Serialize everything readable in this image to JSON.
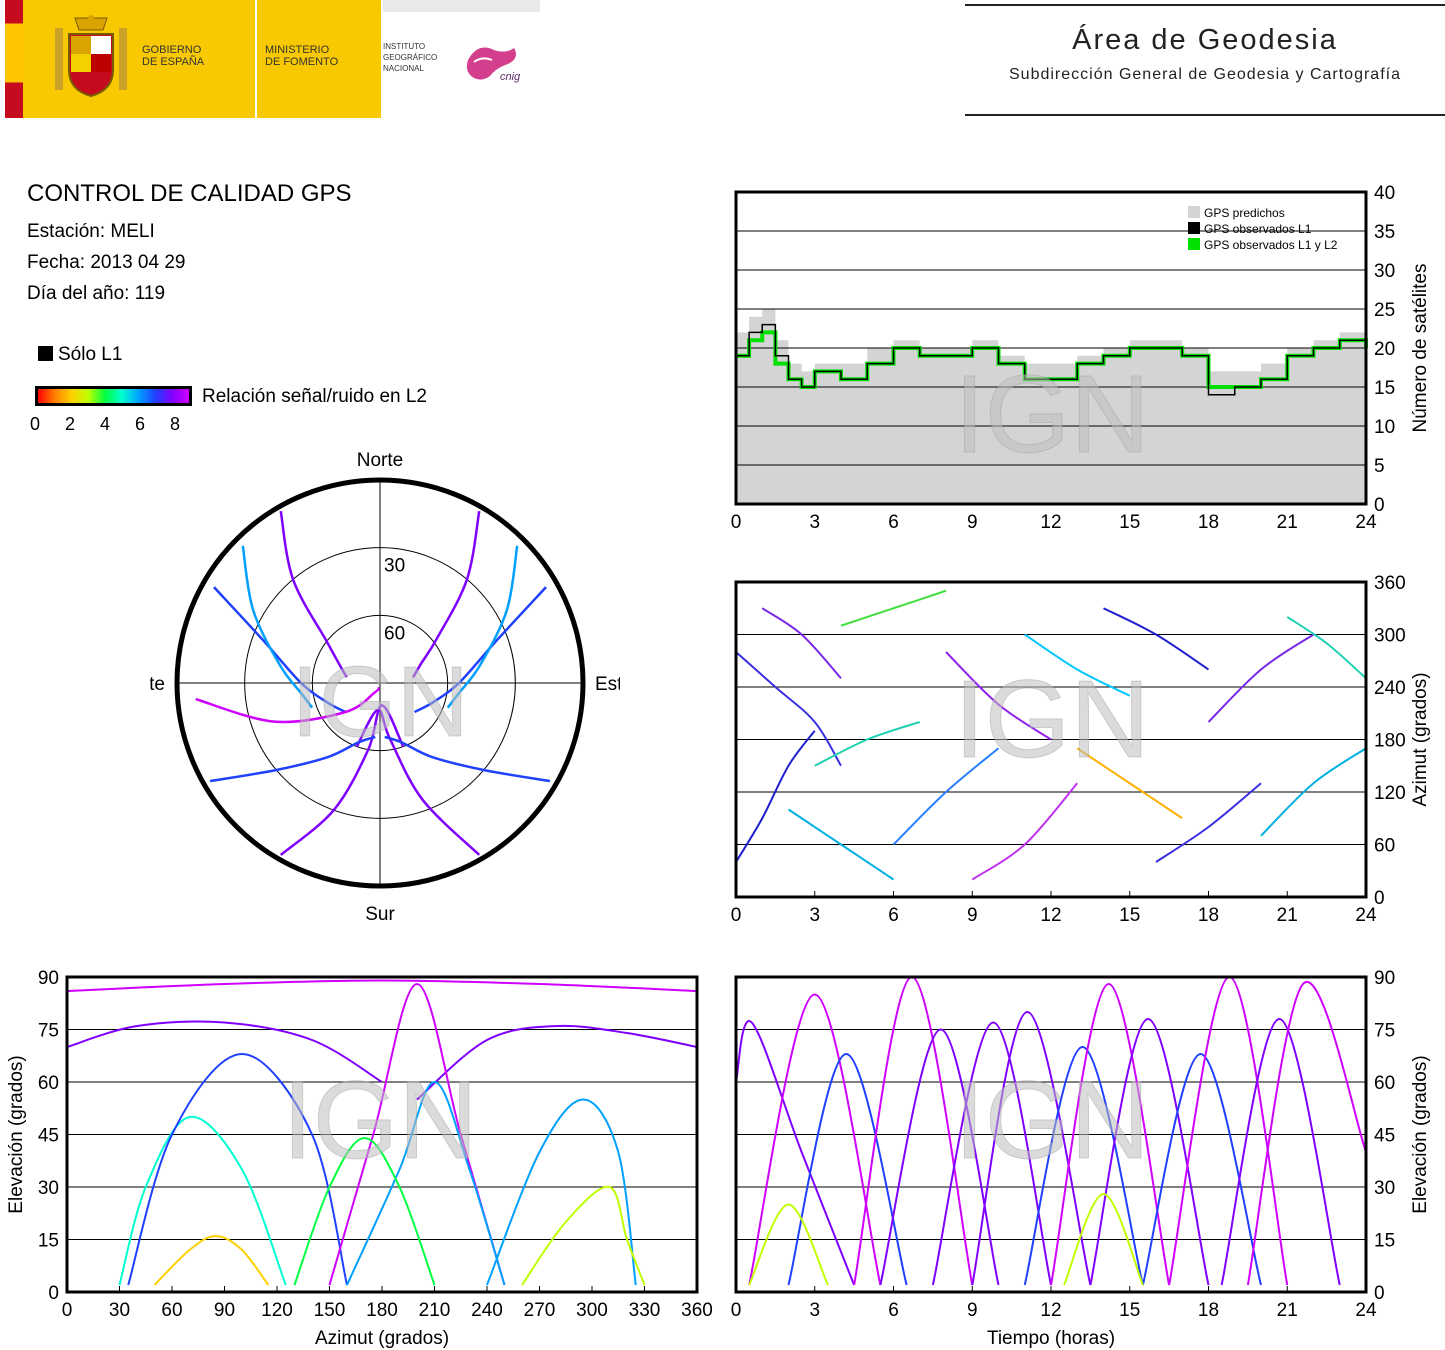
{
  "header": {
    "gobierno": [
      "GOBIERNO",
      "DE ESPAÑA"
    ],
    "ministerio": [
      "MINISTERIO",
      "DE FOMENTO"
    ],
    "instituto": [
      "INSTITUTO",
      "GEOGRÁFICO",
      "NACIONAL"
    ],
    "cnig": "cnig",
    "area_title": "Área de Geodesia",
    "area_subtitle": "Subdirección General de Geodesia y Cartografía"
  },
  "info": {
    "title": "CONTROL DE CALIDAD GPS",
    "station": "Estación: MELI",
    "date": "Fecha: 2013 04 29",
    "doy": "Día del año: 119"
  },
  "legend": {
    "solo_l1": "Sólo L1",
    "snr_label": "Relación señal/ruido en L2",
    "snr_ticks": [
      "0",
      "2",
      "4",
      "6",
      "8"
    ],
    "snr_colors": [
      "#ff0000",
      "#ff8000",
      "#ffd000",
      "#c0ff00",
      "#00ff40",
      "#00ffd0",
      "#00a0ff",
      "#2040ff",
      "#8000ff",
      "#d000ff"
    ]
  },
  "watermark": "IGN",
  "chart_data": [
    {
      "id": "satellites",
      "type": "line",
      "ylabel": "Número de satélites",
      "xlim": [
        0,
        24
      ],
      "ylim": [
        0,
        40
      ],
      "xticks": [
        "0",
        "3",
        "6",
        "9",
        "12",
        "15",
        "18",
        "21",
        "24"
      ],
      "yticks": [
        "0",
        "5",
        "10",
        "15",
        "20",
        "25",
        "30",
        "35",
        "40"
      ],
      "grid": true,
      "legend_position": "top-right",
      "legend": [
        "GPS predichos",
        "GPS observados L1",
        "GPS observados L1 y L2"
      ],
      "series": [
        {
          "name": "GPS predichos",
          "color": "#d4d4d4",
          "x": [
            0,
            0.5,
            1,
            1.5,
            2,
            2.5,
            3,
            4,
            5,
            6,
            7,
            8,
            9,
            10,
            11,
            12,
            13,
            14,
            15,
            16,
            17,
            18,
            19,
            20,
            21,
            22,
            23,
            24
          ],
          "values": [
            22,
            24,
            25,
            21,
            18,
            17,
            18,
            18,
            20,
            21,
            20,
            20,
            21,
            19,
            18,
            18,
            19,
            20,
            21,
            21,
            20,
            17,
            17,
            18,
            20,
            21,
            22,
            21
          ]
        },
        {
          "name": "GPS observados L1",
          "color": "#000000",
          "x": [
            0,
            0.5,
            1,
            1.5,
            2,
            2.5,
            3,
            4,
            5,
            6,
            7,
            8,
            9,
            10,
            11,
            12,
            13,
            14,
            15,
            16,
            17,
            18,
            19,
            20,
            21,
            22,
            23,
            24
          ],
          "values": [
            19,
            22,
            23,
            19,
            16,
            15,
            17,
            16,
            18,
            20,
            19,
            19,
            20,
            18,
            16,
            16,
            18,
            19,
            20,
            20,
            19,
            14,
            15,
            16,
            19,
            20,
            21,
            20
          ]
        },
        {
          "name": "GPS observados L1 y L2",
          "color": "#00e000",
          "x": [
            0,
            0.5,
            1,
            1.5,
            2,
            2.5,
            3,
            4,
            5,
            6,
            7,
            8,
            9,
            10,
            11,
            12,
            13,
            14,
            15,
            16,
            17,
            18,
            19,
            20,
            21,
            22,
            23,
            24
          ],
          "values": [
            19,
            21,
            22,
            18,
            16,
            15,
            17,
            16,
            18,
            20,
            19,
            19,
            20,
            18,
            16,
            16,
            18,
            19,
            20,
            20,
            19,
            15,
            15,
            16,
            19,
            20,
            21,
            20
          ]
        }
      ]
    },
    {
      "id": "skyplot",
      "type": "scatter",
      "directions": {
        "north": "Norte",
        "south": "Sur",
        "east": "Este",
        "west": "Oeste"
      },
      "rings": [
        "30",
        "60"
      ],
      "tracks": [
        {
          "az": [
            330,
            320,
            308,
            295,
            280
          ],
          "el": [
            2,
            30,
            60,
            70,
            75
          ]
        },
        {
          "az": [
            30,
            40,
            52,
            65,
            80
          ],
          "el": [
            2,
            30,
            58,
            70,
            75
          ]
        },
        {
          "az": [
            300,
            290,
            270,
            250,
            230
          ],
          "el": [
            5,
            35,
            55,
            65,
            70
          ]
        },
        {
          "az": [
            60,
            70,
            90,
            110,
            130
          ],
          "el": [
            5,
            35,
            55,
            65,
            70
          ]
        },
        {
          "az": [
            210,
            200,
            190,
            175,
            160
          ],
          "el": [
            2,
            30,
            60,
            80,
            60
          ]
        },
        {
          "az": [
            150,
            160,
            170,
            185,
            200
          ],
          "el": [
            2,
            35,
            65,
            78,
            60
          ]
        },
        {
          "az": [
            240,
            230,
            215,
            200,
            185
          ],
          "el": [
            3,
            30,
            50,
            62,
            66
          ]
        },
        {
          "az": [
            120,
            130,
            145,
            160,
            175
          ],
          "el": [
            3,
            30,
            50,
            62,
            66
          ]
        },
        {
          "az": [
            315,
            300,
            280,
            262,
            250
          ],
          "el": [
            4,
            25,
            45,
            55,
            58
          ]
        },
        {
          "az": [
            45,
            60,
            80,
            98,
            110
          ],
          "el": [
            4,
            25,
            45,
            55,
            58
          ]
        },
        {
          "az": [
            265,
            250,
            230,
            210,
            190
          ],
          "el": [
            8,
            40,
            70,
            85,
            88
          ]
        }
      ]
    },
    {
      "id": "azimut_time",
      "type": "scatter",
      "ylabel": "Azimut (grados)",
      "xlim": [
        0,
        24
      ],
      "ylim": [
        0,
        360
      ],
      "xticks": [
        "0",
        "3",
        "6",
        "9",
        "12",
        "15",
        "18",
        "21",
        "24"
      ],
      "yticks": [
        "0",
        "60",
        "120",
        "180",
        "240",
        "300",
        "360"
      ],
      "grid": true,
      "tracks": [
        {
          "t": [
            0,
            1,
            2,
            3
          ],
          "az": [
            40,
            90,
            150,
            190
          ]
        },
        {
          "t": [
            0,
            1.5,
            3,
            4
          ],
          "az": [
            280,
            240,
            200,
            150
          ]
        },
        {
          "t": [
            1,
            2.5,
            4
          ],
          "az": [
            330,
            300,
            250
          ]
        },
        {
          "t": [
            2,
            4,
            6
          ],
          "az": [
            100,
            60,
            20
          ]
        },
        {
          "t": [
            3,
            5,
            7
          ],
          "az": [
            150,
            180,
            200
          ]
        },
        {
          "t": [
            4,
            6,
            8
          ],
          "az": [
            310,
            330,
            350
          ]
        },
        {
          "t": [
            6,
            8,
            10
          ],
          "az": [
            60,
            120,
            170
          ]
        },
        {
          "t": [
            8,
            10,
            12
          ],
          "az": [
            280,
            220,
            180
          ]
        },
        {
          "t": [
            9,
            11,
            13
          ],
          "az": [
            20,
            60,
            130
          ]
        },
        {
          "t": [
            11,
            13,
            15
          ],
          "az": [
            300,
            260,
            230
          ]
        },
        {
          "t": [
            13,
            15,
            17
          ],
          "az": [
            170,
            130,
            90
          ]
        },
        {
          "t": [
            14,
            16,
            18
          ],
          "az": [
            330,
            300,
            260
          ]
        },
        {
          "t": [
            16,
            18,
            20
          ],
          "az": [
            40,
            80,
            130
          ]
        },
        {
          "t": [
            18,
            20,
            22
          ],
          "az": [
            200,
            260,
            300
          ]
        },
        {
          "t": [
            20,
            22,
            24
          ],
          "az": [
            70,
            130,
            170
          ]
        },
        {
          "t": [
            21,
            22.5,
            24
          ],
          "az": [
            320,
            290,
            250
          ]
        }
      ]
    },
    {
      "id": "elev_azimut",
      "type": "scatter",
      "xlabel": "Azimut (grados)",
      "ylabel": "Elevación (grados)",
      "xlim": [
        0,
        360
      ],
      "ylim": [
        0,
        90
      ],
      "xticks": [
        "0",
        "30",
        "60",
        "90",
        "120",
        "150",
        "180",
        "210",
        "240",
        "270",
        "300",
        "330",
        "360"
      ],
      "yticks": [
        "0",
        "15",
        "30",
        "45",
        "60",
        "75",
        "90"
      ],
      "grid": true,
      "tracks": [
        {
          "az": [
            30,
            45,
            70,
            100,
            125
          ],
          "el": [
            2,
            30,
            50,
            35,
            2
          ]
        },
        {
          "az": [
            35,
            60,
            100,
            140,
            160
          ],
          "el": [
            2,
            45,
            68,
            45,
            2
          ]
        },
        {
          "az": [
            0,
            40,
            90,
            140,
            180
          ],
          "el": [
            70,
            76,
            77,
            72,
            60
          ]
        },
        {
          "az": [
            200,
            240,
            280,
            320,
            360
          ],
          "el": [
            55,
            72,
            76,
            74,
            70
          ]
        },
        {
          "az": [
            150,
            175,
            200,
            225,
            250
          ],
          "el": [
            2,
            45,
            88,
            45,
            2
          ]
        },
        {
          "az": [
            160,
            190,
            210,
            230,
            250
          ],
          "el": [
            2,
            35,
            60,
            35,
            2
          ]
        },
        {
          "az": [
            240,
            270,
            295,
            315,
            325
          ],
          "el": [
            2,
            40,
            55,
            40,
            2
          ]
        },
        {
          "az": [
            260,
            285,
            310,
            320,
            330
          ],
          "el": [
            2,
            20,
            30,
            15,
            2
          ]
        },
        {
          "az": [
            0,
            90,
            180,
            270,
            360
          ],
          "el": [
            86,
            88,
            89,
            88,
            86
          ]
        },
        {
          "az": [
            130,
            150,
            170,
            190,
            210
          ],
          "el": [
            2,
            30,
            44,
            30,
            2
          ]
        },
        {
          "az": [
            50,
            70,
            85,
            100,
            115
          ],
          "el": [
            2,
            12,
            16,
            12,
            2
          ]
        }
      ]
    },
    {
      "id": "elev_tiempo",
      "type": "scatter",
      "xlabel": "Tiempo (horas)",
      "ylabel": "Elevación (grados)",
      "xlim": [
        0,
        24
      ],
      "ylim": [
        0,
        90
      ],
      "xticks": [
        "0",
        "3",
        "6",
        "9",
        "12",
        "15",
        "18",
        "21",
        "24"
      ],
      "yticks": [
        "0",
        "15",
        "30",
        "45",
        "60",
        "75",
        "90"
      ],
      "grid": true,
      "tracks": [
        {
          "t": [
            0,
            0.6,
            2.5,
            4.5
          ],
          "el": [
            60,
            77,
            40,
            2
          ]
        },
        {
          "t": [
            0.5,
            3,
            5.5
          ],
          "el": [
            2,
            85,
            2
          ]
        },
        {
          "t": [
            2,
            4.2,
            6.5
          ],
          "el": [
            2,
            68,
            2
          ]
        },
        {
          "t": [
            4.5,
            6.7,
            9
          ],
          "el": [
            2,
            90,
            2
          ]
        },
        {
          "t": [
            5.5,
            7.8,
            10
          ],
          "el": [
            2,
            75,
            2
          ]
        },
        {
          "t": [
            7.5,
            9.8,
            12
          ],
          "el": [
            2,
            77,
            2
          ]
        },
        {
          "t": [
            9,
            11.1,
            13.5
          ],
          "el": [
            2,
            80,
            2
          ]
        },
        {
          "t": [
            11,
            13.2,
            15.5
          ],
          "el": [
            2,
            70,
            2
          ]
        },
        {
          "t": [
            12,
            14.2,
            16.5
          ],
          "el": [
            2,
            88,
            2
          ]
        },
        {
          "t": [
            13.5,
            15.7,
            18
          ],
          "el": [
            2,
            78,
            2
          ]
        },
        {
          "t": [
            15.5,
            17.7,
            20
          ],
          "el": [
            2,
            68,
            2
          ]
        },
        {
          "t": [
            16.5,
            18.8,
            21
          ],
          "el": [
            2,
            90,
            2
          ]
        },
        {
          "t": [
            18.5,
            20.7,
            23
          ],
          "el": [
            2,
            78,
            2
          ]
        },
        {
          "t": [
            19.5,
            21.6,
            24
          ],
          "el": [
            2,
            88,
            40
          ]
        },
        {
          "t": [
            0.5,
            2,
            3.5
          ],
          "el": [
            2,
            25,
            2
          ]
        },
        {
          "t": [
            12.5,
            14,
            15.5
          ],
          "el": [
            2,
            28,
            2
          ]
        }
      ]
    }
  ]
}
